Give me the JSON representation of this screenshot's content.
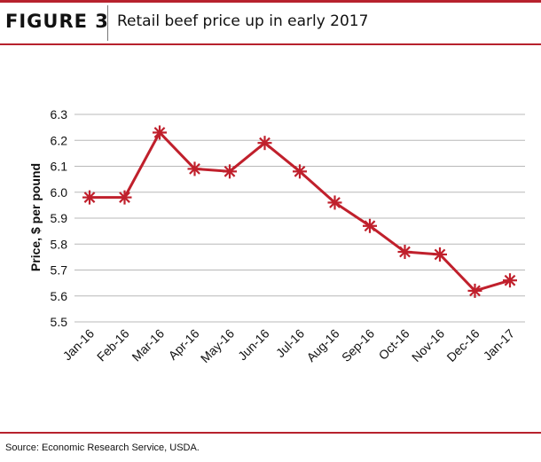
{
  "header": {
    "figure_label": "FIGURE 3",
    "title": "Retail beef price up in early 2017"
  },
  "footer": {
    "source": "Source: Economic Research Service, USDA."
  },
  "colors": {
    "brand": "#b7222d",
    "series": "#c0202c",
    "grid": "#b8b8b8"
  },
  "chart_data": {
    "type": "line",
    "title": "Retail beef price up in early 2017",
    "xlabel": "",
    "ylabel": "Price, $ per pound",
    "categories": [
      "Jan-16",
      "Feb-16",
      "Mar-16",
      "Apr-16",
      "May-16",
      "Jun-16",
      "Jul-16",
      "Aug-16",
      "Sep-16",
      "Oct-16",
      "Nov-16",
      "Dec-16",
      "Jan-17"
    ],
    "series": [
      {
        "values": [
          5.98,
          5.98,
          6.23,
          6.09,
          6.08,
          6.19,
          6.08,
          5.96,
          5.87,
          5.77,
          5.76,
          5.62,
          5.66
        ]
      }
    ],
    "ylim": [
      5.5,
      6.3
    ],
    "yticks": [
      "5.5",
      "5.6",
      "5.7",
      "5.8",
      "5.9",
      "6.0",
      "6.1",
      "6.2",
      "6.3"
    ],
    "grid": true,
    "marker": "asterisk",
    "legend": "none"
  }
}
